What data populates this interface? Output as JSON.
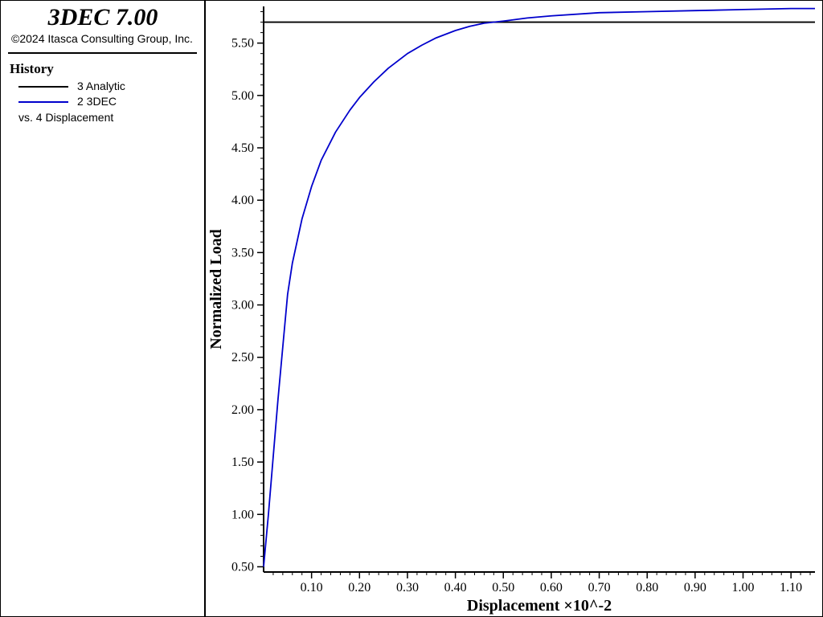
{
  "header": {
    "title": "3DEC 7.00",
    "copyright": "©2024 Itasca Consulting Group, Inc."
  },
  "legend": {
    "heading": "History",
    "items": [
      {
        "label": "3 Analytic",
        "color": "#000000"
      },
      {
        "label": "2 3DEC",
        "color": "#0000cc"
      }
    ],
    "versus": "vs. 4 Displacement"
  },
  "chart_data": {
    "type": "line",
    "title": "",
    "xlabel": "Displacement ×10^-2",
    "ylabel": "Normalized Load",
    "xlim": [
      0.0,
      1.15
    ],
    "ylim": [
      0.45,
      5.85
    ],
    "x_ticks": [
      0.1,
      0.2,
      0.3,
      0.4,
      0.5,
      0.6,
      0.7,
      0.8,
      0.9,
      1.0,
      1.1
    ],
    "x_tick_labels": [
      "0.10",
      "0.20",
      "0.30",
      "0.40",
      "0.50",
      "0.60",
      "0.70",
      "0.80",
      "0.90",
      "1.00",
      "1.10"
    ],
    "y_ticks": [
      0.5,
      1.0,
      1.5,
      2.0,
      2.5,
      3.0,
      3.5,
      4.0,
      4.5,
      5.0,
      5.5
    ],
    "y_tick_labels": [
      "0.50",
      "1.00",
      "1.50",
      "2.00",
      "2.50",
      "3.00",
      "3.50",
      "4.00",
      "4.50",
      "5.00",
      "5.50"
    ],
    "grid": false,
    "legend_position": "left-panel",
    "series": [
      {
        "name": "3 Analytic",
        "color": "#000000",
        "x": [
          0.0,
          1.15
        ],
        "y": [
          5.7,
          5.7
        ]
      },
      {
        "name": "2 3DEC",
        "color": "#0000cc",
        "x": [
          0.0,
          0.01,
          0.02,
          0.03,
          0.04,
          0.05,
          0.06,
          0.08,
          0.1,
          0.12,
          0.15,
          0.18,
          0.2,
          0.23,
          0.26,
          0.3,
          0.33,
          0.36,
          0.4,
          0.43,
          0.46,
          0.5,
          0.55,
          0.6,
          0.7,
          0.8,
          0.9,
          1.0,
          1.1,
          1.15
        ],
        "y": [
          0.5,
          1.0,
          1.55,
          2.1,
          2.6,
          3.1,
          3.4,
          3.82,
          4.13,
          4.38,
          4.65,
          4.86,
          4.98,
          5.13,
          5.26,
          5.4,
          5.48,
          5.55,
          5.62,
          5.66,
          5.69,
          5.71,
          5.74,
          5.76,
          5.79,
          5.8,
          5.81,
          5.82,
          5.83,
          5.83
        ]
      }
    ]
  }
}
